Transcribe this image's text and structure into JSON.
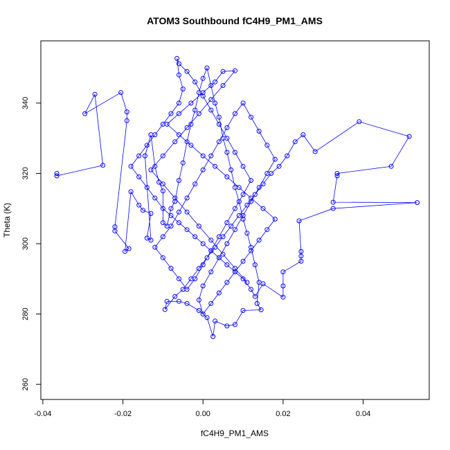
{
  "chart_data": {
    "type": "scatter",
    "title": "ATOM3 Southbound fC4H9_PM1_AMS",
    "xlabel": "fC4H9_PM1_AMS",
    "ylabel": "Theta (K)",
    "xlim": [
      -0.0405,
      0.0565
    ],
    "ylim": [
      255.7,
      357.7
    ],
    "xticks": [
      -0.04,
      -0.02,
      0.0,
      0.02,
      0.04
    ],
    "xtick_labels": [
      "-0.04",
      "-0.02",
      "0.00",
      "0.02",
      "0.04"
    ],
    "yticks": [
      260,
      280,
      300,
      320,
      340
    ],
    "ytick_labels": [
      "260",
      "280",
      "300",
      "320",
      "340"
    ],
    "grid": false,
    "legend": "none",
    "series_color": "#0000ff",
    "marker": "open-circle",
    "connected": true,
    "series": [
      {
        "values_xy": [
          [
            -0.0365,
            320.0
          ],
          [
            -0.0365,
            319.3
          ],
          [
            -0.025,
            322.3
          ],
          [
            -0.027,
            342.5
          ],
          [
            -0.0295,
            337.0
          ],
          [
            -0.0205,
            343.0
          ],
          [
            -0.019,
            337.5
          ],
          [
            -0.019,
            335.0
          ],
          [
            -0.022,
            304.8
          ],
          [
            -0.022,
            303.6
          ],
          [
            -0.0185,
            298.6
          ],
          [
            -0.0195,
            297.8
          ],
          [
            -0.018,
            314.8
          ],
          [
            -0.016,
            311.0
          ],
          [
            -0.015,
            309.5
          ],
          [
            -0.013,
            308.6
          ],
          [
            -0.014,
            301.6
          ],
          [
            -0.013,
            301.0
          ],
          [
            -0.0145,
            325.0
          ],
          [
            -0.013,
            331.0
          ],
          [
            -0.012,
            322.0
          ],
          [
            -0.011,
            317.5
          ],
          [
            -0.01,
            315.0
          ],
          [
            -0.01,
            306.0
          ],
          [
            -0.009,
            305.0
          ],
          [
            -0.008,
            310.0
          ],
          [
            -0.007,
            312.0
          ],
          [
            -0.006,
            318.0
          ],
          [
            -0.005,
            323.0
          ],
          [
            -0.004,
            329.0
          ],
          [
            -0.003,
            334.0
          ],
          [
            -0.002,
            338.0
          ],
          [
            -0.001,
            343.0
          ],
          [
            0.0,
            347.0
          ],
          [
            0.001,
            350.0
          ],
          [
            0.002,
            345.0
          ],
          [
            0.003,
            340.0
          ],
          [
            0.004,
            336.0
          ],
          [
            0.005,
            330.0
          ],
          [
            0.006,
            326.0
          ],
          [
            0.007,
            321.0
          ],
          [
            0.008,
            316.0
          ],
          [
            0.009,
            312.0
          ],
          [
            0.01,
            307.0
          ],
          [
            0.011,
            303.0
          ],
          [
            0.012,
            299.0
          ],
          [
            0.013,
            294.0
          ],
          [
            0.014,
            289.0
          ],
          [
            0.0135,
            283.0
          ],
          [
            0.0145,
            281.2
          ],
          [
            0.01,
            281.0
          ],
          [
            0.008,
            277.0
          ],
          [
            0.006,
            276.6
          ],
          [
            0.003,
            278.0
          ],
          [
            0.0025,
            273.6
          ],
          [
            0.001,
            279.0
          ],
          [
            -0.001,
            281.0
          ],
          [
            -0.004,
            283.0
          ],
          [
            -0.006,
            283.6
          ],
          [
            -0.009,
            283.6
          ],
          [
            -0.0095,
            281.3
          ],
          [
            -0.007,
            285.0
          ],
          [
            -0.005,
            287.0
          ],
          [
            -0.003,
            290.0
          ],
          [
            -0.001,
            293.0
          ],
          [
            0.001,
            296.0
          ],
          [
            0.003,
            299.0
          ],
          [
            0.005,
            302.0
          ],
          [
            0.007,
            305.0
          ],
          [
            0.009,
            308.0
          ],
          [
            0.011,
            311.0
          ],
          [
            0.013,
            314.0
          ],
          [
            0.015,
            317.0
          ],
          [
            0.017,
            320.0
          ],
          [
            0.019,
            322.0
          ],
          [
            0.021,
            325.0
          ],
          [
            0.023,
            329.0
          ],
          [
            0.025,
            331.0
          ],
          [
            0.028,
            326.2
          ],
          [
            0.039,
            334.7
          ],
          [
            0.0515,
            330.5
          ],
          [
            0.047,
            322.0
          ],
          [
            0.0335,
            320.0
          ],
          [
            0.0335,
            319.3
          ],
          [
            0.0325,
            311.8
          ],
          [
            0.0535,
            311.7
          ],
          [
            0.0325,
            310.0
          ],
          [
            0.024,
            306.5
          ],
          [
            0.0245,
            297.8
          ],
          [
            0.0245,
            296.5
          ],
          [
            0.0245,
            295.0
          ],
          [
            0.02,
            292.0
          ],
          [
            0.02,
            288.0
          ],
          [
            0.02,
            284.8
          ],
          [
            0.015,
            288.6
          ],
          [
            0.013,
            285.0
          ],
          [
            0.012,
            287.0
          ],
          [
            0.01,
            290.0
          ],
          [
            0.008,
            292.0
          ],
          [
            0.006,
            294.0
          ],
          [
            0.004,
            296.0
          ],
          [
            0.002,
            298.0
          ],
          [
            0.0,
            300.0
          ],
          [
            -0.002,
            302.0
          ],
          [
            -0.004,
            304.0
          ],
          [
            -0.006,
            306.0
          ],
          [
            -0.008,
            308.0
          ],
          [
            -0.01,
            310.0
          ],
          [
            -0.012,
            313.0
          ],
          [
            -0.014,
            316.0
          ],
          [
            -0.016,
            319.0
          ],
          [
            -0.018,
            322.0
          ],
          [
            -0.016,
            325.0
          ],
          [
            -0.014,
            328.0
          ],
          [
            -0.012,
            331.0
          ],
          [
            -0.01,
            334.0
          ],
          [
            -0.008,
            337.0
          ],
          [
            -0.006,
            340.0
          ],
          [
            -0.005,
            344.0
          ],
          [
            -0.006,
            348.0
          ],
          [
            -0.0065,
            352.7
          ],
          [
            -0.006,
            351.2
          ],
          [
            -0.004,
            349.0
          ],
          [
            -0.002,
            346.0
          ],
          [
            0.0,
            342.0
          ],
          [
            0.002,
            338.0
          ],
          [
            0.004,
            334.0
          ],
          [
            0.006,
            330.0
          ],
          [
            0.008,
            326.0
          ],
          [
            0.01,
            322.0
          ],
          [
            0.012,
            318.0
          ],
          [
            0.01,
            314.0
          ],
          [
            0.008,
            310.0
          ],
          [
            0.006,
            306.0
          ],
          [
            0.004,
            302.0
          ],
          [
            0.002,
            298.0
          ],
          [
            0.0,
            294.0
          ],
          [
            -0.002,
            290.0
          ],
          [
            -0.004,
            287.0
          ],
          [
            -0.006,
            290.0
          ],
          [
            -0.008,
            293.0
          ],
          [
            -0.01,
            296.0
          ],
          [
            -0.012,
            299.0
          ],
          [
            -0.01,
            302.0
          ],
          [
            -0.008,
            305.0
          ],
          [
            -0.006,
            309.0
          ],
          [
            -0.004,
            313.0
          ],
          [
            -0.002,
            317.0
          ],
          [
            0.0,
            321.0
          ],
          [
            0.002,
            325.0
          ],
          [
            0.004,
            329.0
          ],
          [
            0.006,
            333.0
          ],
          [
            0.008,
            337.0
          ],
          [
            0.01,
            340.0
          ],
          [
            0.012,
            336.0
          ],
          [
            0.014,
            332.0
          ],
          [
            0.016,
            328.0
          ],
          [
            0.018,
            324.0
          ],
          [
            0.016,
            320.0
          ],
          [
            0.014,
            316.0
          ],
          [
            0.012,
            312.0
          ],
          [
            0.01,
            308.0
          ],
          [
            0.008,
            304.0
          ],
          [
            0.006,
            300.0
          ],
          [
            0.004,
            296.0
          ],
          [
            0.002,
            292.0
          ],
          [
            0.0,
            288.0
          ],
          [
            -0.001,
            284.0
          ],
          [
            0.0,
            280.0
          ],
          [
            0.002,
            283.0
          ],
          [
            0.004,
            286.0
          ],
          [
            0.006,
            289.0
          ],
          [
            0.008,
            292.0
          ],
          [
            0.01,
            295.0
          ],
          [
            0.012,
            298.0
          ],
          [
            0.014,
            301.0
          ],
          [
            0.016,
            304.0
          ],
          [
            0.018,
            307.0
          ],
          [
            0.015,
            310.0
          ],
          [
            0.012,
            313.0
          ],
          [
            0.009,
            316.0
          ],
          [
            0.006,
            319.0
          ],
          [
            0.003,
            322.0
          ],
          [
            0.0,
            325.0
          ],
          [
            -0.003,
            328.0
          ],
          [
            -0.006,
            331.0
          ],
          [
            -0.009,
            334.0
          ],
          [
            -0.006,
            337.0
          ],
          [
            -0.003,
            340.0
          ],
          [
            0.0,
            343.0
          ],
          [
            0.003,
            346.0
          ],
          [
            0.005,
            349.0
          ],
          [
            0.008,
            349.2
          ],
          [
            0.005,
            345.0
          ],
          [
            0.002,
            341.0
          ],
          [
            -0.001,
            337.0
          ],
          [
            -0.004,
            333.0
          ],
          [
            -0.007,
            329.0
          ],
          [
            -0.01,
            325.0
          ],
          [
            -0.013,
            321.0
          ],
          [
            -0.01,
            317.0
          ],
          [
            -0.007,
            313.0
          ],
          [
            -0.004,
            309.0
          ],
          [
            -0.001,
            305.0
          ],
          [
            0.002,
            301.0
          ],
          [
            0.005,
            297.0
          ],
          [
            0.008,
            293.0
          ],
          [
            0.011,
            289.0
          ]
        ]
      }
    ]
  }
}
